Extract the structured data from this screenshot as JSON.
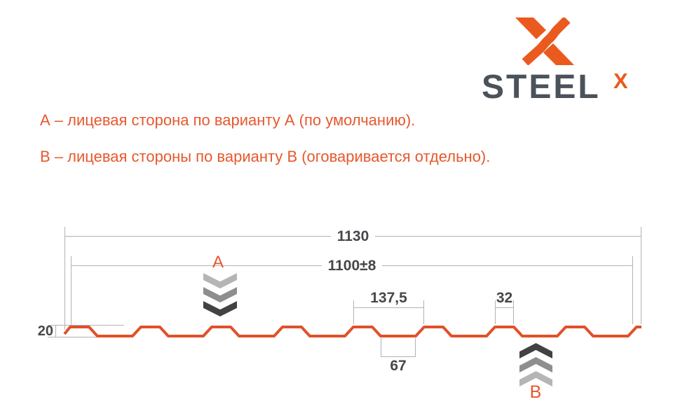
{
  "colors": {
    "text_orange": "#e7582e",
    "logo_orange": "#ea5a1e",
    "profile_orange": "#e0512b",
    "steel_dark": "#4b525a",
    "dim_text": "#47474b",
    "dim_line": "#b2b2b4",
    "chevron_light": "#b5b5b5",
    "chevron_mid": "#8e8e8e",
    "chevron_dark": "#424242"
  },
  "logo": {
    "brand": "STEEL",
    "sup": "X"
  },
  "notes": {
    "line_a": "А – лицевая сторона по варианту А (по умолчанию).",
    "line_b": "В – лицевая стороны по варианту В (оговаривается отдельно)."
  },
  "dimensions": {
    "overall_width": "1130",
    "working_width": "1100±8",
    "rib_pitch": "137,5",
    "rib_top": "32",
    "valley": "67",
    "profile_height": "20"
  },
  "markers": {
    "a": {
      "label": "A",
      "direction": "down"
    },
    "b": {
      "label": "B",
      "direction": "up"
    }
  },
  "profile": {
    "stroke_width": 4,
    "points": [
      [
        92,
        477
      ],
      [
        100,
        467
      ],
      [
        127,
        467
      ],
      [
        139,
        480
      ],
      [
        189,
        480
      ],
      [
        201,
        467
      ],
      [
        228,
        467
      ],
      [
        240,
        480
      ],
      [
        290,
        480
      ],
      [
        302,
        467
      ],
      [
        329,
        467
      ],
      [
        341,
        480
      ],
      [
        391,
        480
      ],
      [
        403,
        467
      ],
      [
        430,
        467
      ],
      [
        442,
        480
      ],
      [
        492,
        480
      ],
      [
        504,
        467
      ],
      [
        531,
        467
      ],
      [
        543,
        480
      ],
      [
        593,
        480
      ],
      [
        605,
        467
      ],
      [
        632,
        467
      ],
      [
        644,
        480
      ],
      [
        694,
        480
      ],
      [
        706,
        467
      ],
      [
        733,
        467
      ],
      [
        745,
        480
      ],
      [
        795,
        480
      ],
      [
        807,
        467
      ],
      [
        834,
        467
      ],
      [
        846,
        480
      ],
      [
        896,
        480
      ],
      [
        908,
        467
      ],
      [
        915,
        467
      ]
    ]
  }
}
